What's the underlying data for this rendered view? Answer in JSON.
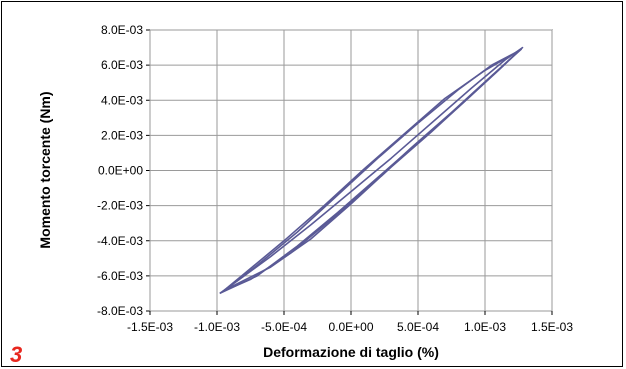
{
  "panel_label": "3",
  "chart_data": {
    "type": "line",
    "title": "",
    "xlabel": "Deformazione di taglio (%)",
    "ylabel": "Momento torcente (Nm)",
    "xlim": [
      -0.0015,
      0.0015
    ],
    "ylim": [
      -0.008,
      0.008
    ],
    "x_ticks": [
      -0.0015,
      -0.001,
      -0.0005,
      0,
      0.0005,
      0.001,
      0.0015
    ],
    "x_tick_labels": [
      "-1.5E-03",
      "-1.0E-03",
      "-5.0E-04",
      "0.0E+00",
      "5.0E-04",
      "1.0E-03",
      "1.5E-03"
    ],
    "y_ticks": [
      -0.008,
      -0.006,
      -0.004,
      -0.002,
      0,
      0.002,
      0.004,
      0.006,
      0.008
    ],
    "y_tick_labels": [
      "-8.0E-03",
      "-6.0E-03",
      "-4.0E-03",
      "-2.0E-03",
      "0.0E+00",
      "2.0E-03",
      "4.0E-03",
      "6.0E-03",
      "8.0E-03"
    ],
    "grid": true,
    "line_color": "#5a5a96",
    "series": [
      {
        "points": [
          [
            -0.00098,
            -0.007
          ],
          [
            -0.00085,
            -0.0063
          ],
          [
            -0.0006,
            -0.0049
          ],
          [
            -0.0003,
            -0.0031
          ],
          [
            0.0,
            -0.0012
          ],
          [
            0.0003,
            0.0007
          ],
          [
            0.0006,
            0.0027
          ],
          [
            0.0009,
            0.0047
          ],
          [
            0.00115,
            0.0063
          ],
          [
            0.00128,
            0.007
          ],
          [
            0.0011,
            0.0057
          ],
          [
            0.0008,
            0.0036
          ],
          [
            0.0005,
            0.0016
          ],
          [
            0.0002,
            -0.0004
          ],
          [
            -0.0001,
            -0.0024
          ],
          [
            -0.0004,
            -0.0043
          ],
          [
            -0.0007,
            -0.006
          ],
          [
            -0.00098,
            -0.007
          ]
        ]
      },
      {
        "points": [
          [
            -0.00096,
            -0.0069
          ],
          [
            -0.0008,
            -0.0059
          ],
          [
            -0.0005,
            -0.004
          ],
          [
            -0.0002,
            -0.002
          ],
          [
            0.0001,
            0.0001
          ],
          [
            0.0004,
            0.0021
          ],
          [
            0.0007,
            0.0041
          ],
          [
            0.001,
            0.0057
          ],
          [
            0.00127,
            0.0069
          ],
          [
            0.00105,
            0.0054
          ],
          [
            0.00075,
            0.0033
          ],
          [
            0.00045,
            0.0013
          ],
          [
            0.00015,
            -0.0008
          ],
          [
            -0.00015,
            -0.0028
          ],
          [
            -0.00045,
            -0.0047
          ],
          [
            -0.00075,
            -0.0062
          ],
          [
            -0.00096,
            -0.0069
          ]
        ]
      },
      {
        "points": [
          [
            -0.00094,
            -0.0068
          ],
          [
            -0.0007,
            -0.0054
          ],
          [
            -0.0004,
            -0.0035
          ],
          [
            -0.0001,
            -0.0014
          ],
          [
            0.0002,
            0.0007
          ],
          [
            0.0005,
            0.0027
          ],
          [
            0.0008,
            0.0046
          ],
          [
            0.00105,
            0.006
          ],
          [
            0.00125,
            0.0068
          ],
          [
            0.0009,
            0.0043
          ],
          [
            0.0006,
            0.0022
          ],
          [
            0.0003,
            0.0002
          ],
          [
            0.0,
            -0.0019
          ],
          [
            -0.0003,
            -0.0039
          ],
          [
            -0.0006,
            -0.0055
          ],
          [
            -0.00094,
            -0.0068
          ]
        ]
      }
    ]
  }
}
